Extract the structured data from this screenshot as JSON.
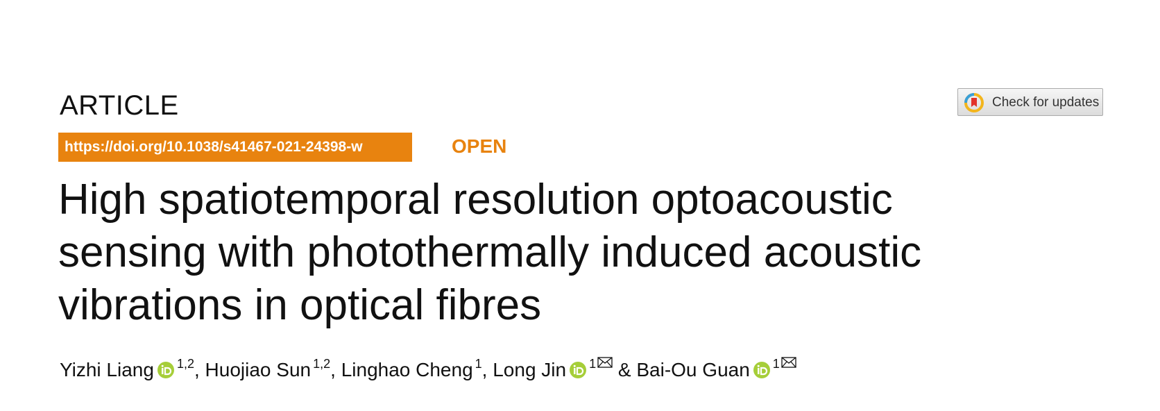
{
  "header": {
    "article_type": "ARTICLE",
    "doi": "https://doi.org/10.1038/s41467-021-24398-w",
    "access": "OPEN",
    "check_updates": "Check for updates"
  },
  "title_lines": [
    "High spatiotemporal resolution optoacoustic",
    "sensing with photothermally induced acoustic",
    "vibrations in optical fibres"
  ],
  "authors": [
    {
      "name": "Yizhi Liang",
      "orcid": true,
      "affiliations": "1,2",
      "corresponding": false,
      "separator": ", "
    },
    {
      "name": "Huojiao Sun",
      "orcid": false,
      "affiliations": "1,2",
      "corresponding": false,
      "separator": ", "
    },
    {
      "name": "Linghao Cheng",
      "orcid": false,
      "affiliations": "1",
      "corresponding": false,
      "separator": ", "
    },
    {
      "name": "Long Jin",
      "orcid": true,
      "affiliations": "1",
      "corresponding": true,
      "separator": " & "
    },
    {
      "name": "Bai-Ou Guan",
      "orcid": true,
      "affiliations": "1",
      "corresponding": true
    }
  ]
}
